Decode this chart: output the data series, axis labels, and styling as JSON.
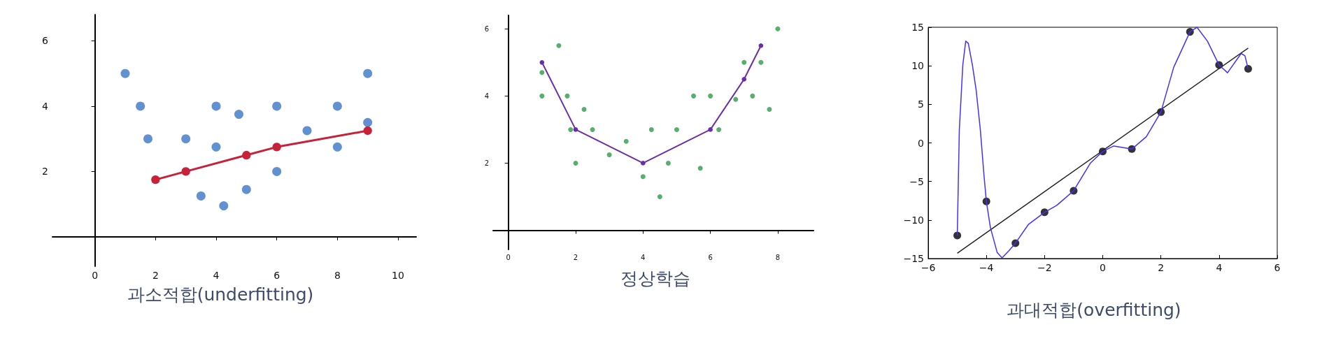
{
  "chart_data": [
    {
      "type": "scatter",
      "title": "과소적합(underfitting)",
      "xlim": [
        -1.4,
        10.6
      ],
      "ylim": [
        -0.9,
        6.8
      ],
      "xticks": [
        0,
        2,
        4,
        6,
        8,
        10
      ],
      "yticks": [
        2,
        4,
        6
      ],
      "series": [
        {
          "color": "#3a75c4",
          "marker": "circle",
          "x": [
            1,
            1.5,
            1.75,
            3,
            3.5,
            4,
            4,
            4.25,
            4.75,
            5,
            6,
            6,
            7,
            8,
            8,
            9,
            9
          ],
          "values": [
            5,
            4,
            3,
            3,
            1.25,
            4,
            2.75,
            0.95,
            3.75,
            1.45,
            4,
            2,
            3.25,
            4,
            2.75,
            5,
            3.5
          ]
        },
        {
          "type": "line",
          "color": "#c8213a",
          "marker": "circle",
          "x": [
            2,
            3,
            5,
            6,
            9
          ],
          "values": [
            1.75,
            2,
            2.5,
            2.75,
            3.25
          ]
        }
      ]
    },
    {
      "type": "scatter",
      "title": "정상학습",
      "xlim": [
        -0.45,
        9.06
      ],
      "ylim": [
        -0.57,
        6.4
      ],
      "xticks": [
        0,
        2,
        4,
        6,
        8
      ],
      "yticks": [
        2,
        4,
        6
      ],
      "series": [
        {
          "color": "#2e9a48",
          "marker": "circle",
          "x": [
            1,
            1,
            1.5,
            1.75,
            1.85,
            2,
            2.25,
            2.5,
            3,
            3.5,
            4,
            4.25,
            4.5,
            4.75,
            5,
            5.5,
            5.7,
            6,
            6.25,
            6.75,
            7,
            7.25,
            7.5,
            7.75,
            8
          ],
          "values": [
            4.7,
            4,
            5.5,
            4,
            3,
            2,
            3.6,
            3,
            2.25,
            2.65,
            1.6,
            3,
            1,
            2,
            3,
            4,
            1.85,
            4,
            3,
            3.9,
            5,
            4,
            5,
            3.6,
            6
          ]
        },
        {
          "type": "line",
          "color": "#6a2fa8",
          "marker": "circle",
          "x": [
            1,
            2,
            4,
            6,
            7,
            7.5
          ],
          "values": [
            5,
            3,
            2,
            3,
            4.5,
            5.5
          ]
        }
      ]
    },
    {
      "type": "scatter",
      "title": "과대적합(overfitting)",
      "xlim": [
        -6,
        6
      ],
      "ylim": [
        -15,
        15
      ],
      "xticks": [
        -6,
        -4,
        -2,
        0,
        2,
        4,
        6
      ],
      "yticks": [
        -15,
        -10,
        -5,
        0,
        5,
        10,
        15
      ],
      "series": [
        {
          "type": "line",
          "color": "#222222",
          "marker": "none",
          "x": [
            -5,
            5
          ],
          "values": [
            -14.3,
            12.3
          ]
        },
        {
          "type": "line",
          "color": "#4a2cff",
          "marker": "none",
          "x": [
            -5,
            -4.93,
            -4.81,
            -4.71,
            -4.62,
            -4.48,
            -4.35,
            -4.21,
            -4.08,
            -4,
            -3.86,
            -3.63,
            -3.46,
            -3.23,
            -3,
            -2.56,
            -2,
            -1.58,
            -1,
            -0.42,
            0,
            0.38,
            1,
            1.5,
            2,
            2.44,
            3,
            3.24,
            3.6,
            4,
            4.29,
            4.76,
            4.89,
            5
          ],
          "values": [
            -12,
            1.7,
            10.1,
            13.2,
            12.9,
            10.1,
            6.8,
            1.8,
            -4.3,
            -7.6,
            -11,
            -14.2,
            -14.9,
            -14,
            -13,
            -10.6,
            -9,
            -8.1,
            -6.2,
            -2.6,
            -1.1,
            -0.4,
            -0.8,
            0.8,
            4,
            9.8,
            14.4,
            15,
            13.2,
            10.1,
            9.1,
            11.6,
            11.3,
            9.6
          ]
        },
        {
          "color": "#000000",
          "marker": "circle",
          "x": [
            -5,
            -4,
            -3,
            -2,
            -1,
            0,
            1,
            2,
            3,
            4,
            5
          ],
          "values": [
            -12,
            -7.6,
            -13,
            -9,
            -6.2,
            -1.1,
            -0.8,
            4,
            14.4,
            10.1,
            9.6
          ]
        }
      ]
    }
  ]
}
